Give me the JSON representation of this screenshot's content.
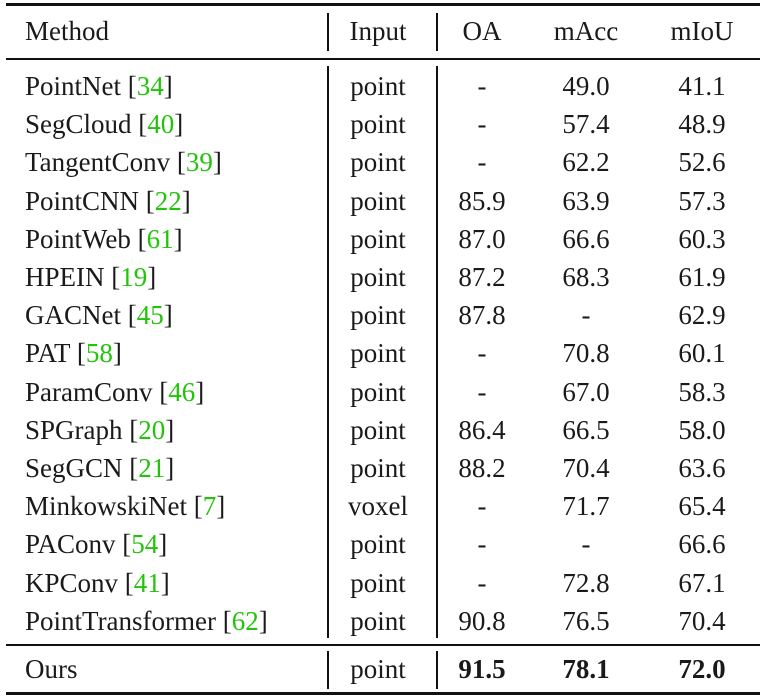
{
  "table": {
    "headers": {
      "method": "Method",
      "input": "Input",
      "oa": "OA",
      "macc": "mAcc",
      "miou": "mIoU"
    },
    "rows": [
      {
        "method": "PointNet",
        "ref": "34",
        "input": "point",
        "oa": "-",
        "macc": "49.0",
        "miou": "41.1"
      },
      {
        "method": "SegCloud",
        "ref": "40",
        "input": "point",
        "oa": "-",
        "macc": "57.4",
        "miou": "48.9"
      },
      {
        "method": "TangentConv",
        "ref": "39",
        "input": "point",
        "oa": "-",
        "macc": "62.2",
        "miou": "52.6"
      },
      {
        "method": "PointCNN",
        "ref": "22",
        "input": "point",
        "oa": "85.9",
        "macc": "63.9",
        "miou": "57.3"
      },
      {
        "method": "PointWeb",
        "ref": "61",
        "input": "point",
        "oa": "87.0",
        "macc": "66.6",
        "miou": "60.3"
      },
      {
        "method": "HPEIN",
        "ref": "19",
        "input": "point",
        "oa": "87.2",
        "macc": "68.3",
        "miou": "61.9"
      },
      {
        "method": "GACNet",
        "ref": "45",
        "input": "point",
        "oa": "87.8",
        "macc": "-",
        "miou": "62.9"
      },
      {
        "method": "PAT",
        "ref": "58",
        "input": "point",
        "oa": "-",
        "macc": "70.8",
        "miou": "60.1"
      },
      {
        "method": "ParamConv",
        "ref": "46",
        "input": "point",
        "oa": "-",
        "macc": "67.0",
        "miou": "58.3"
      },
      {
        "method": "SPGraph",
        "ref": "20",
        "input": "point",
        "oa": "86.4",
        "macc": "66.5",
        "miou": "58.0"
      },
      {
        "method": "SegGCN",
        "ref": "21",
        "input": "point",
        "oa": "88.2",
        "macc": "70.4",
        "miou": "63.6"
      },
      {
        "method": "MinkowskiNet",
        "ref": "7",
        "input": "voxel",
        "oa": "-",
        "macc": "71.7",
        "miou": "65.4"
      },
      {
        "method": "PAConv",
        "ref": "54",
        "input": "point",
        "oa": "-",
        "macc": "-",
        "miou": "66.6"
      },
      {
        "method": "KPConv",
        "ref": "41",
        "input": "point",
        "oa": "-",
        "macc": "72.8",
        "miou": "67.1"
      },
      {
        "method": "PointTransformer",
        "ref": "62",
        "input": "point",
        "oa": "90.8",
        "macc": "76.5",
        "miou": "70.4"
      }
    ],
    "ours": {
      "method": "Ours",
      "input": "point",
      "oa": "91.5",
      "macc": "78.1",
      "miou": "72.0"
    },
    "ref_color": "#22c40a"
  }
}
